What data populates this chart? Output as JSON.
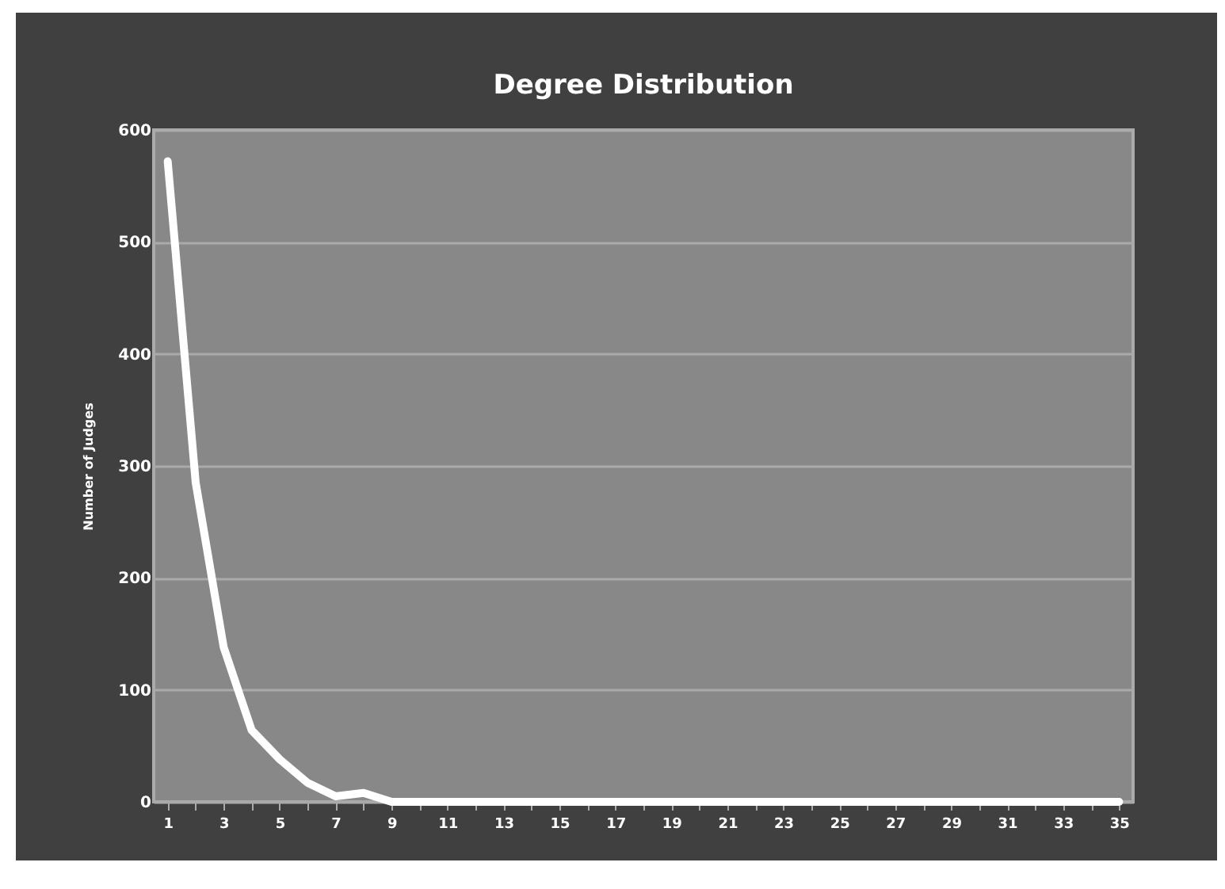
{
  "chart_data": {
    "type": "line",
    "title": "Degree Distribution",
    "ylabel": "Number of Judges",
    "x": [
      1,
      2,
      3,
      4,
      5,
      6,
      7,
      8,
      9,
      10,
      11,
      12,
      13,
      14,
      15,
      16,
      17,
      18,
      19,
      20,
      21,
      22,
      23,
      24,
      25,
      26,
      27,
      28,
      29,
      30,
      31,
      32,
      33,
      34,
      35
    ],
    "xlim": [
      0.5,
      35.5
    ],
    "xticks": [
      1,
      {
        "value": 2,
        "label": null
      },
      3,
      {
        "value": 4,
        "label": null
      },
      5,
      {
        "value": 6,
        "label": null
      },
      7,
      {
        "value": 8,
        "label": null
      },
      9,
      {
        "value": 10,
        "label": null
      },
      11,
      {
        "value": 12,
        "label": null
      },
      13,
      {
        "value": 14,
        "label": null
      },
      15,
      {
        "value": 16,
        "label": null
      },
      17,
      {
        "value": 18,
        "label": null
      },
      19,
      {
        "value": 20,
        "label": null
      },
      21,
      {
        "value": 22,
        "label": null
      },
      23,
      {
        "value": 24,
        "label": null
      },
      25,
      {
        "value": 26,
        "label": null
      },
      27,
      {
        "value": 28,
        "label": null
      },
      29,
      {
        "value": 30,
        "label": null
      },
      31,
      {
        "value": 32,
        "label": null
      },
      33,
      {
        "value": 34,
        "label": null
      },
      35
    ],
    "series": [
      {
        "color": "#ffffff",
        "values": [
          572,
          285,
          138,
          64,
          38,
          17,
          5,
          8,
          0,
          0,
          0,
          0,
          0,
          0,
          0,
          0,
          0,
          0,
          0,
          0,
          0,
          0,
          0,
          0,
          0,
          0,
          0,
          0,
          0,
          0,
          0,
          0,
          0,
          0,
          0
        ]
      }
    ],
    "ylim": [
      0,
      600
    ],
    "yticks": [
      0,
      100,
      200,
      300,
      400,
      500,
      600
    ],
    "grid": "y",
    "marker": "none",
    "line_style": "solid",
    "legend": false
  }
}
